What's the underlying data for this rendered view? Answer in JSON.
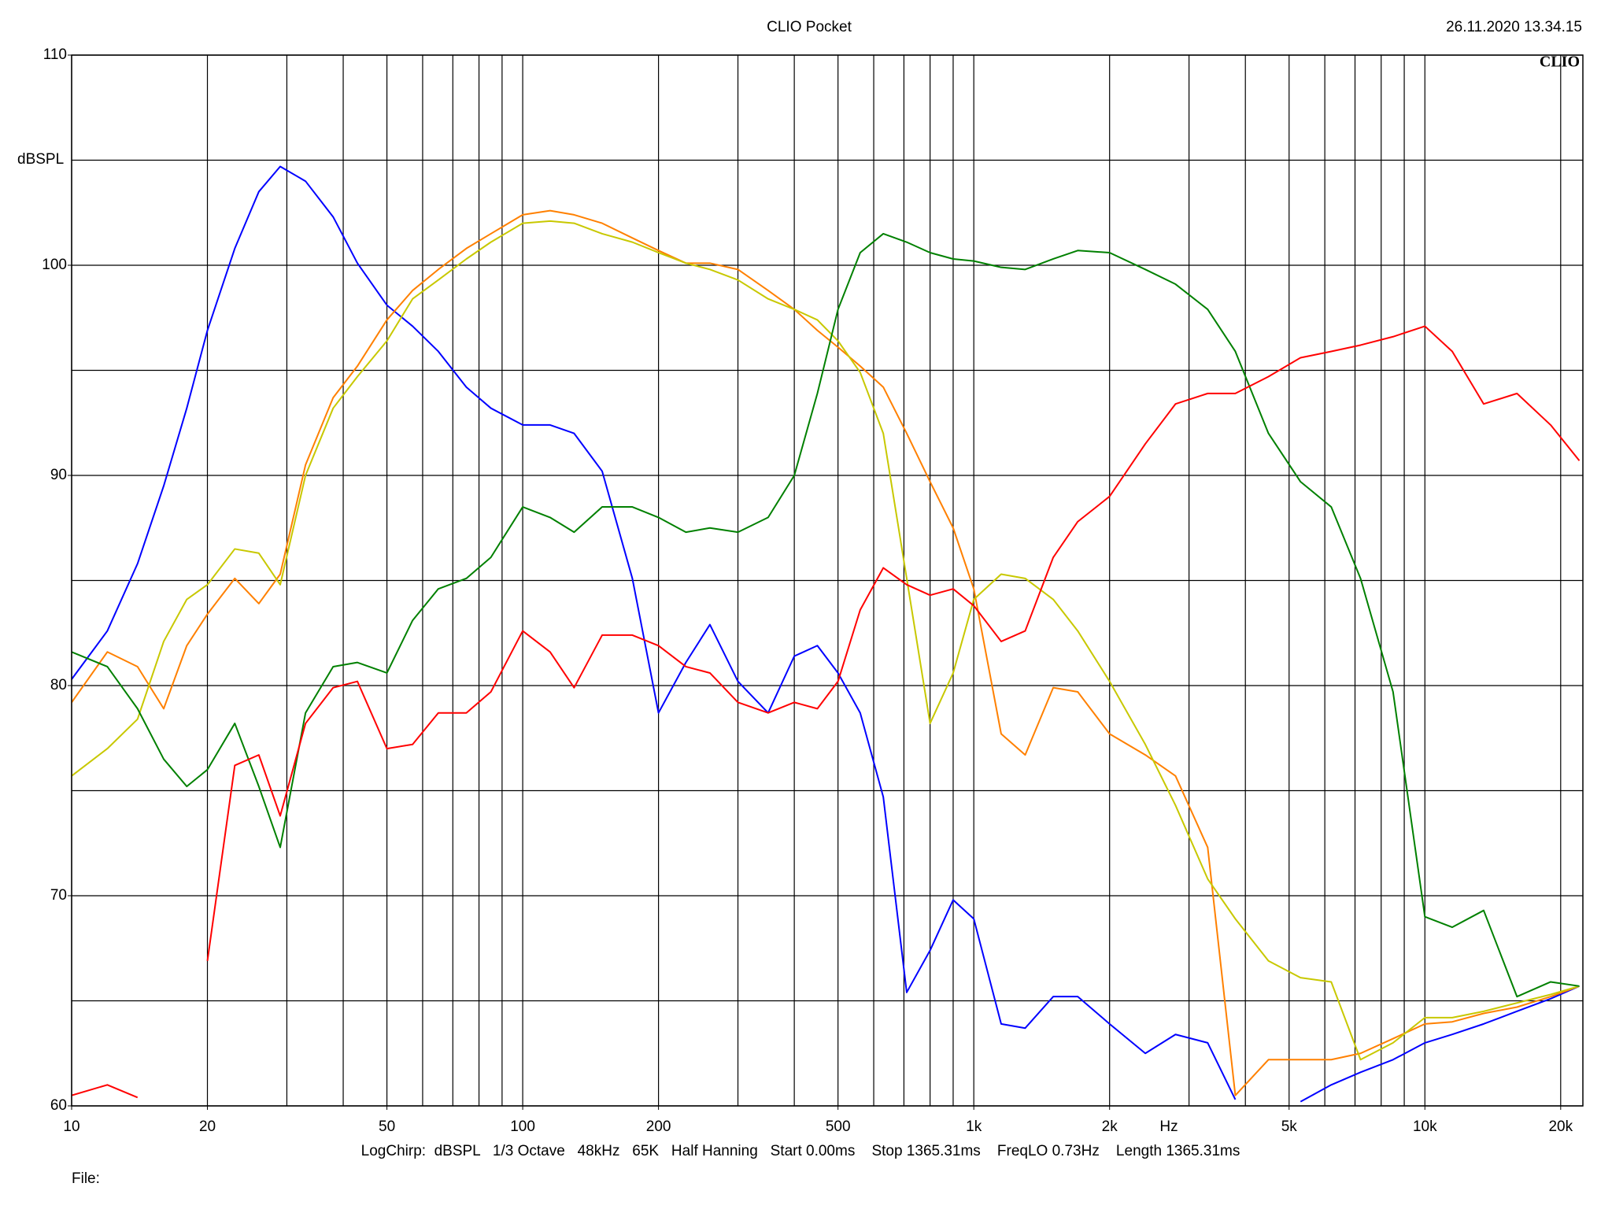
{
  "chart_data": {
    "type": "line",
    "title": "CLIO Pocket",
    "timestamp": "26.11.2020 13.34.15",
    "logo": "CLIO",
    "ylabel": "dBSPL",
    "xlabel": "Hz",
    "footer": "LogChirp:  dBSPL   1/3 Octave   48kHz   65K   Half Hanning   Start 0.00ms    Stop 1365.31ms    FreqLO 0.73Hz    Length 1365.31ms",
    "file_label": "File:",
    "xscale": "log",
    "xlim": [
      10,
      22400
    ],
    "ylim": [
      60,
      110
    ],
    "xticks": [
      10,
      20,
      50,
      100,
      200,
      500,
      {
        "value": 1000,
        "label": "1k"
      },
      {
        "value": 2000,
        "label": "2k"
      },
      {
        "value": 5000,
        "label": "5k"
      },
      {
        "value": 10000,
        "label": "10k"
      },
      {
        "value": 20000,
        "label": "20k"
      }
    ],
    "xgrid": [
      10,
      20,
      30,
      40,
      50,
      60,
      70,
      80,
      90,
      100,
      200,
      300,
      400,
      500,
      600,
      700,
      800,
      900,
      1000,
      2000,
      3000,
      4000,
      5000,
      6000,
      7000,
      8000,
      9000,
      10000,
      20000
    ],
    "yticks": [
      60,
      70,
      80,
      90,
      100,
      110
    ],
    "ygrid": [
      60,
      65,
      70,
      75,
      80,
      85,
      90,
      95,
      100,
      105,
      110
    ],
    "grid": true,
    "x": [
      10,
      12,
      14,
      16,
      18,
      20,
      23,
      26,
      29,
      33,
      38,
      43,
      50,
      57,
      65,
      75,
      85,
      100,
      115,
      130,
      150,
      175,
      200,
      230,
      260,
      300,
      350,
      400,
      450,
      500,
      560,
      630,
      710,
      800,
      900,
      1000,
      1150,
      1300,
      1500,
      1700,
      2000,
      2400,
      2800,
      3300,
      3800,
      4500,
      5300,
      6200,
      7200,
      8500,
      10000,
      11500,
      13500,
      16000,
      19000,
      22000
    ],
    "series": [
      {
        "color": "#0000ff",
        "values": [
          80.3,
          82.6,
          85.8,
          89.5,
          93.2,
          96.9,
          100.8,
          103.5,
          104.7,
          104,
          102.3,
          100.1,
          98.1,
          97.1,
          95.9,
          94.2,
          93.2,
          92.4,
          92.4,
          92,
          90.2,
          85.1,
          78.7,
          81.1,
          82.9,
          80.2,
          78.7,
          81.4,
          81.9,
          80.6,
          78.7,
          74.7,
          65.4,
          67.4,
          69.8,
          68.9,
          63.9,
          63.7,
          65.2,
          65.2,
          63.9,
          62.5,
          63.4,
          63,
          60.3,
          null,
          60.2,
          61,
          61.6,
          62.2,
          63,
          63.4,
          63.9,
          64.5,
          65.1,
          65.7
        ]
      },
      {
        "color": "#ff8000",
        "values": [
          79.2,
          81.6,
          80.9,
          78.9,
          81.9,
          83.4,
          85.1,
          83.9,
          85.3,
          90.5,
          93.7,
          95.2,
          97.4,
          98.8,
          99.8,
          100.8,
          101.5,
          102.4,
          102.6,
          102.4,
          102,
          101.3,
          100.7,
          100.1,
          100.1,
          99.8,
          98.8,
          97.9,
          96.9,
          96.1,
          95.2,
          94.2,
          92,
          89.7,
          87.5,
          84.6,
          77.7,
          76.7,
          79.9,
          79.7,
          77.7,
          76.7,
          75.7,
          72.3,
          60.5,
          62.2,
          62.2,
          62.2,
          62.5,
          63.2,
          63.9,
          64,
          64.4,
          64.7,
          65.2,
          65.7
        ]
      },
      {
        "color": "#c8c800",
        "values": [
          75.7,
          77,
          78.4,
          82.1,
          84.1,
          84.8,
          86.5,
          86.3,
          84.8,
          90,
          93.2,
          94.7,
          96.4,
          98.4,
          99.3,
          100.3,
          101.1,
          102,
          102.1,
          102,
          101.5,
          101.1,
          100.6,
          100.1,
          99.8,
          99.3,
          98.4,
          97.9,
          97.4,
          96.4,
          94.9,
          92,
          85.1,
          78.2,
          80.6,
          84.1,
          85.3,
          85.1,
          84.1,
          82.6,
          80.2,
          77.2,
          74.3,
          70.8,
          68.9,
          66.9,
          66.1,
          65.9,
          62.2,
          63,
          64.2,
          64.2,
          64.5,
          64.9,
          65.3,
          65.7
        ]
      },
      {
        "color": "#008000",
        "values": [
          81.6,
          80.9,
          78.9,
          76.5,
          75.2,
          76,
          78.2,
          75.2,
          72.3,
          78.7,
          80.9,
          81.1,
          80.6,
          83.1,
          84.6,
          85.1,
          86.1,
          88.5,
          88,
          87.3,
          88.5,
          88.5,
          88,
          87.3,
          87.5,
          87.3,
          88,
          90,
          93.9,
          97.9,
          100.6,
          101.5,
          101.1,
          100.6,
          100.3,
          100.2,
          99.9,
          99.8,
          100.3,
          100.7,
          100.6,
          99.8,
          99.1,
          97.9,
          95.9,
          92,
          89.7,
          88.5,
          85.1,
          79.7,
          69,
          68.5,
          69.3,
          65.2,
          65.9,
          65.7
        ]
      },
      {
        "color": "#ff0000",
        "values": [
          60.5,
          61,
          60.4,
          null,
          null,
          66.9,
          76.2,
          76.7,
          73.8,
          78.2,
          79.9,
          80.2,
          77,
          77.2,
          78.7,
          78.7,
          79.7,
          82.6,
          81.6,
          79.9,
          82.4,
          82.4,
          81.9,
          80.9,
          80.6,
          79.2,
          78.7,
          79.2,
          78.9,
          80.2,
          83.6,
          85.6,
          84.8,
          84.3,
          84.6,
          83.8,
          82.1,
          82.6,
          86.1,
          87.8,
          89,
          91.5,
          93.4,
          93.9,
          93.9,
          94.7,
          95.6,
          95.9,
          96.2,
          96.6,
          97.1,
          95.9,
          93.4,
          93.9,
          92.4,
          90.7
        ]
      }
    ]
  }
}
